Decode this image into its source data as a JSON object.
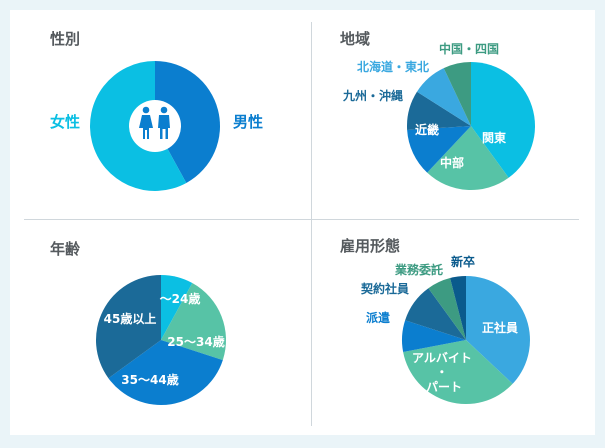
{
  "colors": {
    "cyan": "#0bbfe3",
    "blue": "#0b7ecf",
    "teal": "#57c3a6",
    "navy": "#1b6a98",
    "sky": "#3aa8e0",
    "green": "#3d9b82",
    "darkblue": "#0a5a8c"
  },
  "chart_data": [
    {
      "type": "pie",
      "title": "性別",
      "center_icon": "male-female-icon",
      "categories": [
        "男性",
        "女性"
      ],
      "values": [
        42,
        58
      ]
    },
    {
      "type": "pie",
      "title": "地域",
      "categories": [
        "関東",
        "中部",
        "近畿",
        "九州・沖縄",
        "北海道・東北",
        "中国・四国"
      ],
      "values": [
        40,
        22,
        12,
        10,
        9,
        7
      ]
    },
    {
      "type": "pie",
      "title": "年齢",
      "categories": [
        "〜24歳",
        "25〜34歳",
        "35〜44歳",
        "45歳以上"
      ],
      "values": [
        8,
        22,
        35,
        35
      ]
    },
    {
      "type": "pie",
      "title": "雇用形態",
      "categories": [
        "正社員",
        "アルバイト・パート",
        "派遣",
        "契約社員",
        "業務委託",
        "新卒"
      ],
      "values": [
        37,
        35,
        8,
        10,
        6,
        4
      ]
    }
  ]
}
